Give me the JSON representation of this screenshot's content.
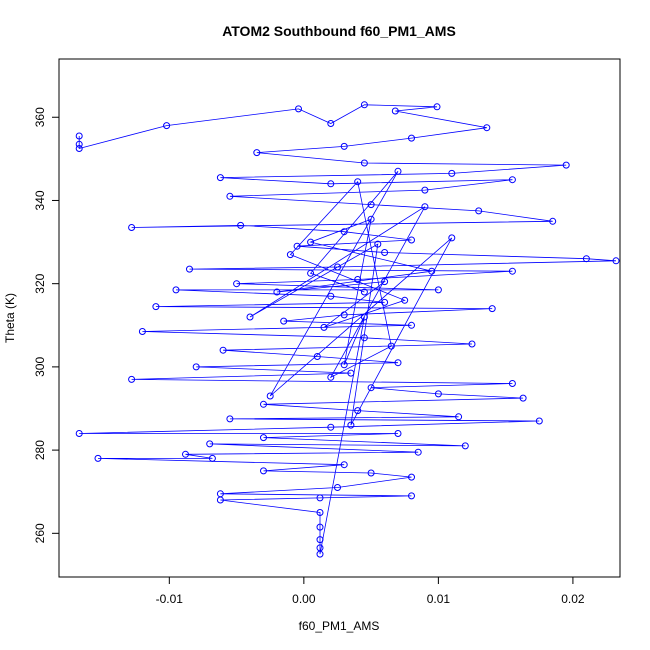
{
  "chart_data": {
    "type": "scatter",
    "title": "ATOM2 Southbound f60_PM1_AMS",
    "xlabel": "f60_PM1_AMS",
    "ylabel": "Theta (K)",
    "xlim": [
      -0.0182,
      0.0235
    ],
    "ylim": [
      249.5,
      374
    ],
    "x_ticks": [
      -0.01,
      0.0,
      0.01,
      0.02
    ],
    "x_tick_labels": [
      "-0.01",
      "0.00",
      "0.01",
      "0.02"
    ],
    "y_ticks": [
      260,
      280,
      300,
      320,
      340,
      360
    ],
    "y_tick_labels": [
      "260",
      "280",
      "300",
      "320",
      "340",
      "360"
    ],
    "grid": false,
    "series": [
      {
        "name": "f60_PM1_AMS vs Theta",
        "color": "#0000ff",
        "marker": "open-circle",
        "connected": true,
        "points": [
          [
            -0.0167,
            355.5
          ],
          [
            -0.0167,
            353.5
          ],
          [
            -0.0167,
            352.5
          ],
          [
            -0.0102,
            358.0
          ],
          [
            -0.0004,
            362.0
          ],
          [
            0.002,
            358.5
          ],
          [
            0.0045,
            363.0
          ],
          [
            0.0099,
            362.5
          ],
          [
            0.0068,
            361.5
          ],
          [
            0.0136,
            357.5
          ],
          [
            0.008,
            355.0
          ],
          [
            0.003,
            353.0
          ],
          [
            -0.0035,
            351.5
          ],
          [
            0.0045,
            349.0
          ],
          [
            0.0195,
            348.5
          ],
          [
            0.011,
            346.5
          ],
          [
            -0.0062,
            345.5
          ],
          [
            0.002,
            344.0
          ],
          [
            0.0155,
            345.0
          ],
          [
            0.009,
            342.5
          ],
          [
            -0.0055,
            341.0
          ],
          [
            0.005,
            339.0
          ],
          [
            0.013,
            337.5
          ],
          [
            0.0185,
            335.0
          ],
          [
            -0.0128,
            333.5
          ],
          [
            -0.0047,
            334.0
          ],
          [
            0.003,
            332.5
          ],
          [
            0.008,
            330.5
          ],
          [
            -0.0005,
            329.0
          ],
          [
            0.006,
            327.5
          ],
          [
            0.021,
            326.0
          ],
          [
            0.0232,
            325.5
          ],
          [
            0.0025,
            324.0
          ],
          [
            -0.0085,
            323.5
          ],
          [
            0.0155,
            323.0
          ],
          [
            0.004,
            321.0
          ],
          [
            -0.005,
            320.0
          ],
          [
            0.01,
            318.5
          ],
          [
            -0.0095,
            318.5
          ],
          [
            0.002,
            317.0
          ],
          [
            0.006,
            315.5
          ],
          [
            -0.011,
            314.5
          ],
          [
            0.014,
            314.0
          ],
          [
            0.003,
            312.5
          ],
          [
            -0.0015,
            311.0
          ],
          [
            0.008,
            310.0
          ],
          [
            -0.012,
            308.5
          ],
          [
            0.0045,
            307.0
          ],
          [
            0.0125,
            305.5
          ],
          [
            -0.006,
            304.0
          ],
          [
            0.001,
            302.5
          ],
          [
            0.007,
            301.0
          ],
          [
            -0.008,
            300.0
          ],
          [
            0.0035,
            298.5
          ],
          [
            -0.0128,
            297.0
          ],
          [
            0.0155,
            296.0
          ],
          [
            0.005,
            295.0
          ],
          [
            0.01,
            293.5
          ],
          [
            0.0163,
            292.5
          ],
          [
            -0.003,
            291.0
          ],
          [
            0.004,
            289.5
          ],
          [
            0.0115,
            288.0
          ],
          [
            -0.0055,
            287.5
          ],
          [
            0.0175,
            287.0
          ],
          [
            0.002,
            285.5
          ],
          [
            -0.0167,
            284.0
          ],
          [
            0.007,
            284.0
          ],
          [
            -0.003,
            283.0
          ],
          [
            0.012,
            281.0
          ],
          [
            -0.007,
            281.5
          ],
          [
            0.0085,
            279.5
          ],
          [
            -0.0088,
            279.0
          ],
          [
            -0.0068,
            278.0
          ],
          [
            -0.0153,
            278.0
          ],
          [
            0.003,
            276.5
          ],
          [
            -0.003,
            275.0
          ],
          [
            0.005,
            274.5
          ],
          [
            0.008,
            273.5
          ],
          [
            0.0025,
            271.0
          ],
          [
            -0.0062,
            269.5
          ],
          [
            0.008,
            269.0
          ],
          [
            0.0012,
            268.5
          ],
          [
            -0.0062,
            268.0
          ],
          [
            0.0012,
            265.0
          ],
          [
            0.0012,
            261.5
          ],
          [
            0.0012,
            258.5
          ],
          [
            0.0012,
            256.5
          ],
          [
            0.0012,
            255.0
          ],
          [
            0.0045,
            312.0
          ],
          [
            0.003,
            300.5
          ],
          [
            0.005,
            335.5
          ],
          [
            0.0005,
            330.0
          ],
          [
            0.0095,
            323.0
          ],
          [
            -0.002,
            318.0
          ],
          [
            0.006,
            320.5
          ],
          [
            0.0015,
            309.5
          ],
          [
            0.0075,
            316.0
          ],
          [
            -0.001,
            327.0
          ],
          [
            0.004,
            344.5
          ],
          [
            0.0065,
            305.0
          ],
          [
            0.002,
            297.5
          ],
          [
            0.009,
            338.5
          ],
          [
            -0.004,
            312.0
          ],
          [
            0.0055,
            329.5
          ],
          [
            0.0035,
            286.0
          ],
          [
            0.011,
            331.0
          ],
          [
            -0.0025,
            293.0
          ],
          [
            0.007,
            347.0
          ],
          [
            0.0005,
            322.5
          ],
          [
            0.0045,
            318.0
          ]
        ]
      }
    ]
  }
}
